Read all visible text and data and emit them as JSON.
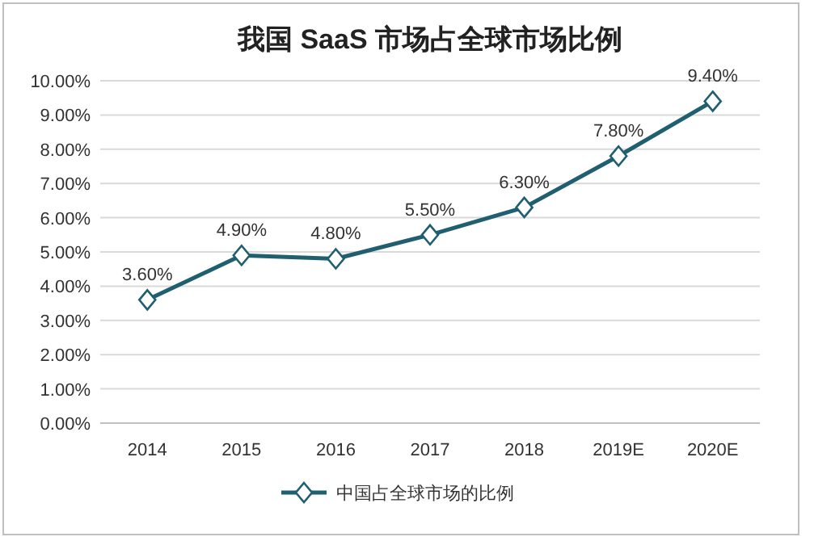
{
  "chart_data": {
    "type": "line",
    "title": "我国 SaaS 市场占全球市场比例",
    "categories": [
      "2014",
      "2015",
      "2016",
      "2017",
      "2018",
      "2019E",
      "2020E"
    ],
    "series": [
      {
        "name": "中国占全球市场的比例",
        "color": "#1f5f70",
        "values": [
          3.6,
          4.9,
          4.8,
          5.5,
          6.3,
          7.8,
          9.4
        ],
        "value_labels": [
          "3.60%",
          "4.90%",
          "4.80%",
          "5.50%",
          "6.30%",
          "7.80%",
          "9.40%"
        ]
      }
    ],
    "ylim": [
      0,
      10
    ],
    "yticks": [
      {
        "value": 0,
        "label": "0.00%"
      },
      {
        "value": 1,
        "label": "1.00%"
      },
      {
        "value": 2,
        "label": "2.00%"
      },
      {
        "value": 3,
        "label": "3.00%"
      },
      {
        "value": 4,
        "label": "4.00%"
      },
      {
        "value": 5,
        "label": "5.00%"
      },
      {
        "value": 6,
        "label": "6.00%"
      },
      {
        "value": 7,
        "label": "7.00%"
      },
      {
        "value": 8,
        "label": "8.00%"
      },
      {
        "value": 9,
        "label": "9.00%"
      },
      {
        "value": 10,
        "label": "10.00%"
      }
    ],
    "grid": "y",
    "legend": "bottom",
    "marker": "diamond",
    "line_style": "solid"
  }
}
